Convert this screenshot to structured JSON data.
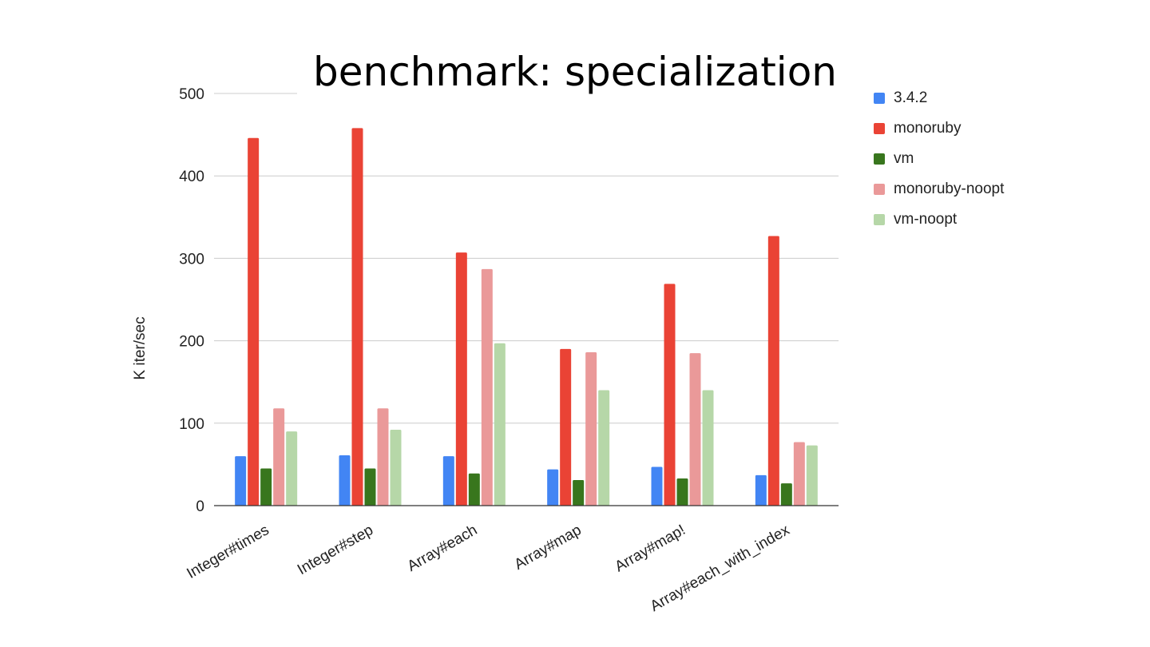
{
  "title": "benchmark: specialization",
  "chart_data": {
    "type": "bar",
    "title": "benchmark: specialization",
    "xlabel": "",
    "ylabel": "K iter/sec",
    "ylim": [
      0,
      500
    ],
    "yticks": [
      "0",
      "100",
      "200",
      "300",
      "400",
      "500"
    ],
    "grid": true,
    "legend_position": "right",
    "categories": [
      "Integer#times",
      "Integer#step",
      "Array#each",
      "Array#map",
      "Array#map!",
      "Array#each_with_index"
    ],
    "series": [
      {
        "name": "3.4.2",
        "color": "#4285f4",
        "values": [
          60,
          61,
          60,
          44,
          47,
          37
        ]
      },
      {
        "name": "monoruby",
        "color": "#ea4335",
        "values": [
          446,
          458,
          307,
          190,
          269,
          327
        ]
      },
      {
        "name": "vm",
        "color": "#38761d",
        "values": [
          45,
          45,
          39,
          31,
          33,
          27
        ]
      },
      {
        "name": "monoruby-noopt",
        "color": "#ea9999",
        "values": [
          118,
          118,
          287,
          186,
          185,
          77
        ]
      },
      {
        "name": "vm-noopt",
        "color": "#b6d7a8",
        "values": [
          90,
          92,
          197,
          140,
          140,
          73
        ]
      }
    ]
  }
}
